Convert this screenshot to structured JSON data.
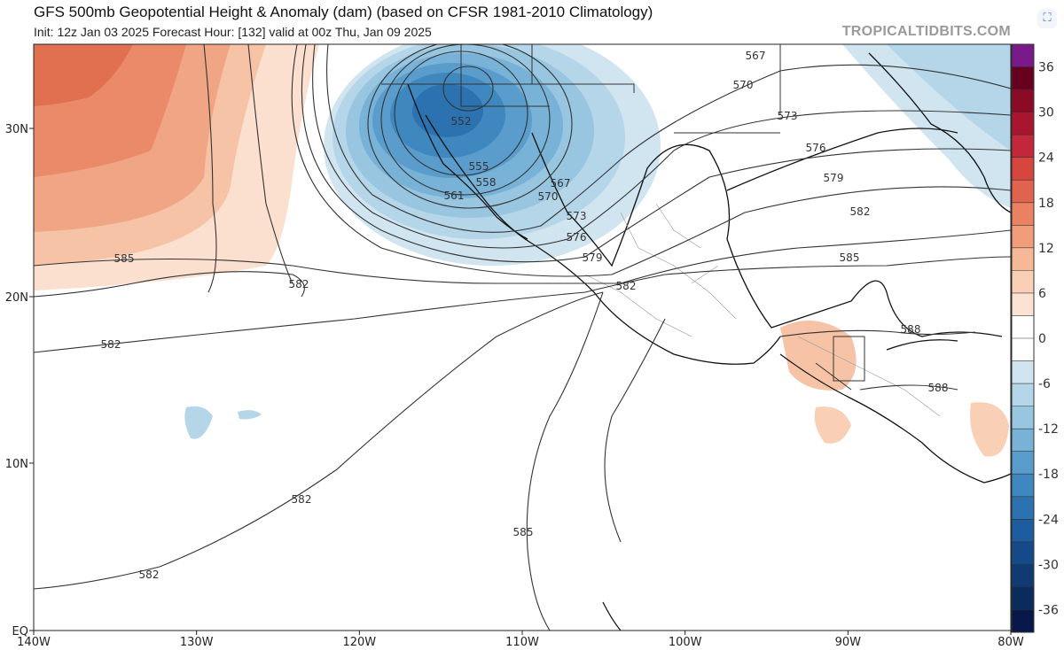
{
  "header": {
    "title": "GFS 500mb Geopotential Height & Anomaly (dam) (based on CFSR 1981-2010 Climatology)",
    "subtitle": "Init: 12z Jan 03 2025   Forecast Hour: [132]   valid at 00z Thu, Jan 09 2025",
    "brand": "TROPICALTIDBITS.COM"
  },
  "map": {
    "lon_labels": [
      "140W",
      "130W",
      "120W",
      "110W",
      "100W",
      "90W",
      "80W"
    ],
    "lat_labels": [
      "EQ",
      "10N",
      "20N",
      "30N"
    ],
    "contour_labels": [
      "552",
      "555",
      "558",
      "561",
      "567",
      "570",
      "573",
      "576",
      "579",
      "582",
      "567",
      "570",
      "573",
      "576",
      "579",
      "582",
      "585",
      "588",
      "588",
      "585",
      "582",
      "582",
      "582",
      "585",
      "582"
    ],
    "anomaly_colors": {
      "positive": "#f4a582",
      "negative": "#4393c3",
      "neutral": "#ffffff"
    }
  },
  "colorbar": {
    "ticks": [
      "36",
      "30",
      "24",
      "18",
      "12",
      "6",
      "0",
      "-6",
      "-12",
      "-18",
      "-24",
      "-30",
      "-36"
    ],
    "colors": [
      "#7a1a8a",
      "#67001f",
      "#8b0a26",
      "#a8152e",
      "#c2283a",
      "#d6463f",
      "#e0634f",
      "#ea8161",
      "#f19d7a",
      "#f6b897",
      "#f9cfb5",
      "#fce2d3",
      "#ffffff",
      "#ffffff",
      "#d1e5f0",
      "#b5d5e8",
      "#98c5e0",
      "#79b2d7",
      "#5a9dcc",
      "#3f88bf",
      "#2c72b0",
      "#1d5c9e",
      "#154a88",
      "#0f3a72",
      "#0a2b5c",
      "#08184a"
    ]
  }
}
